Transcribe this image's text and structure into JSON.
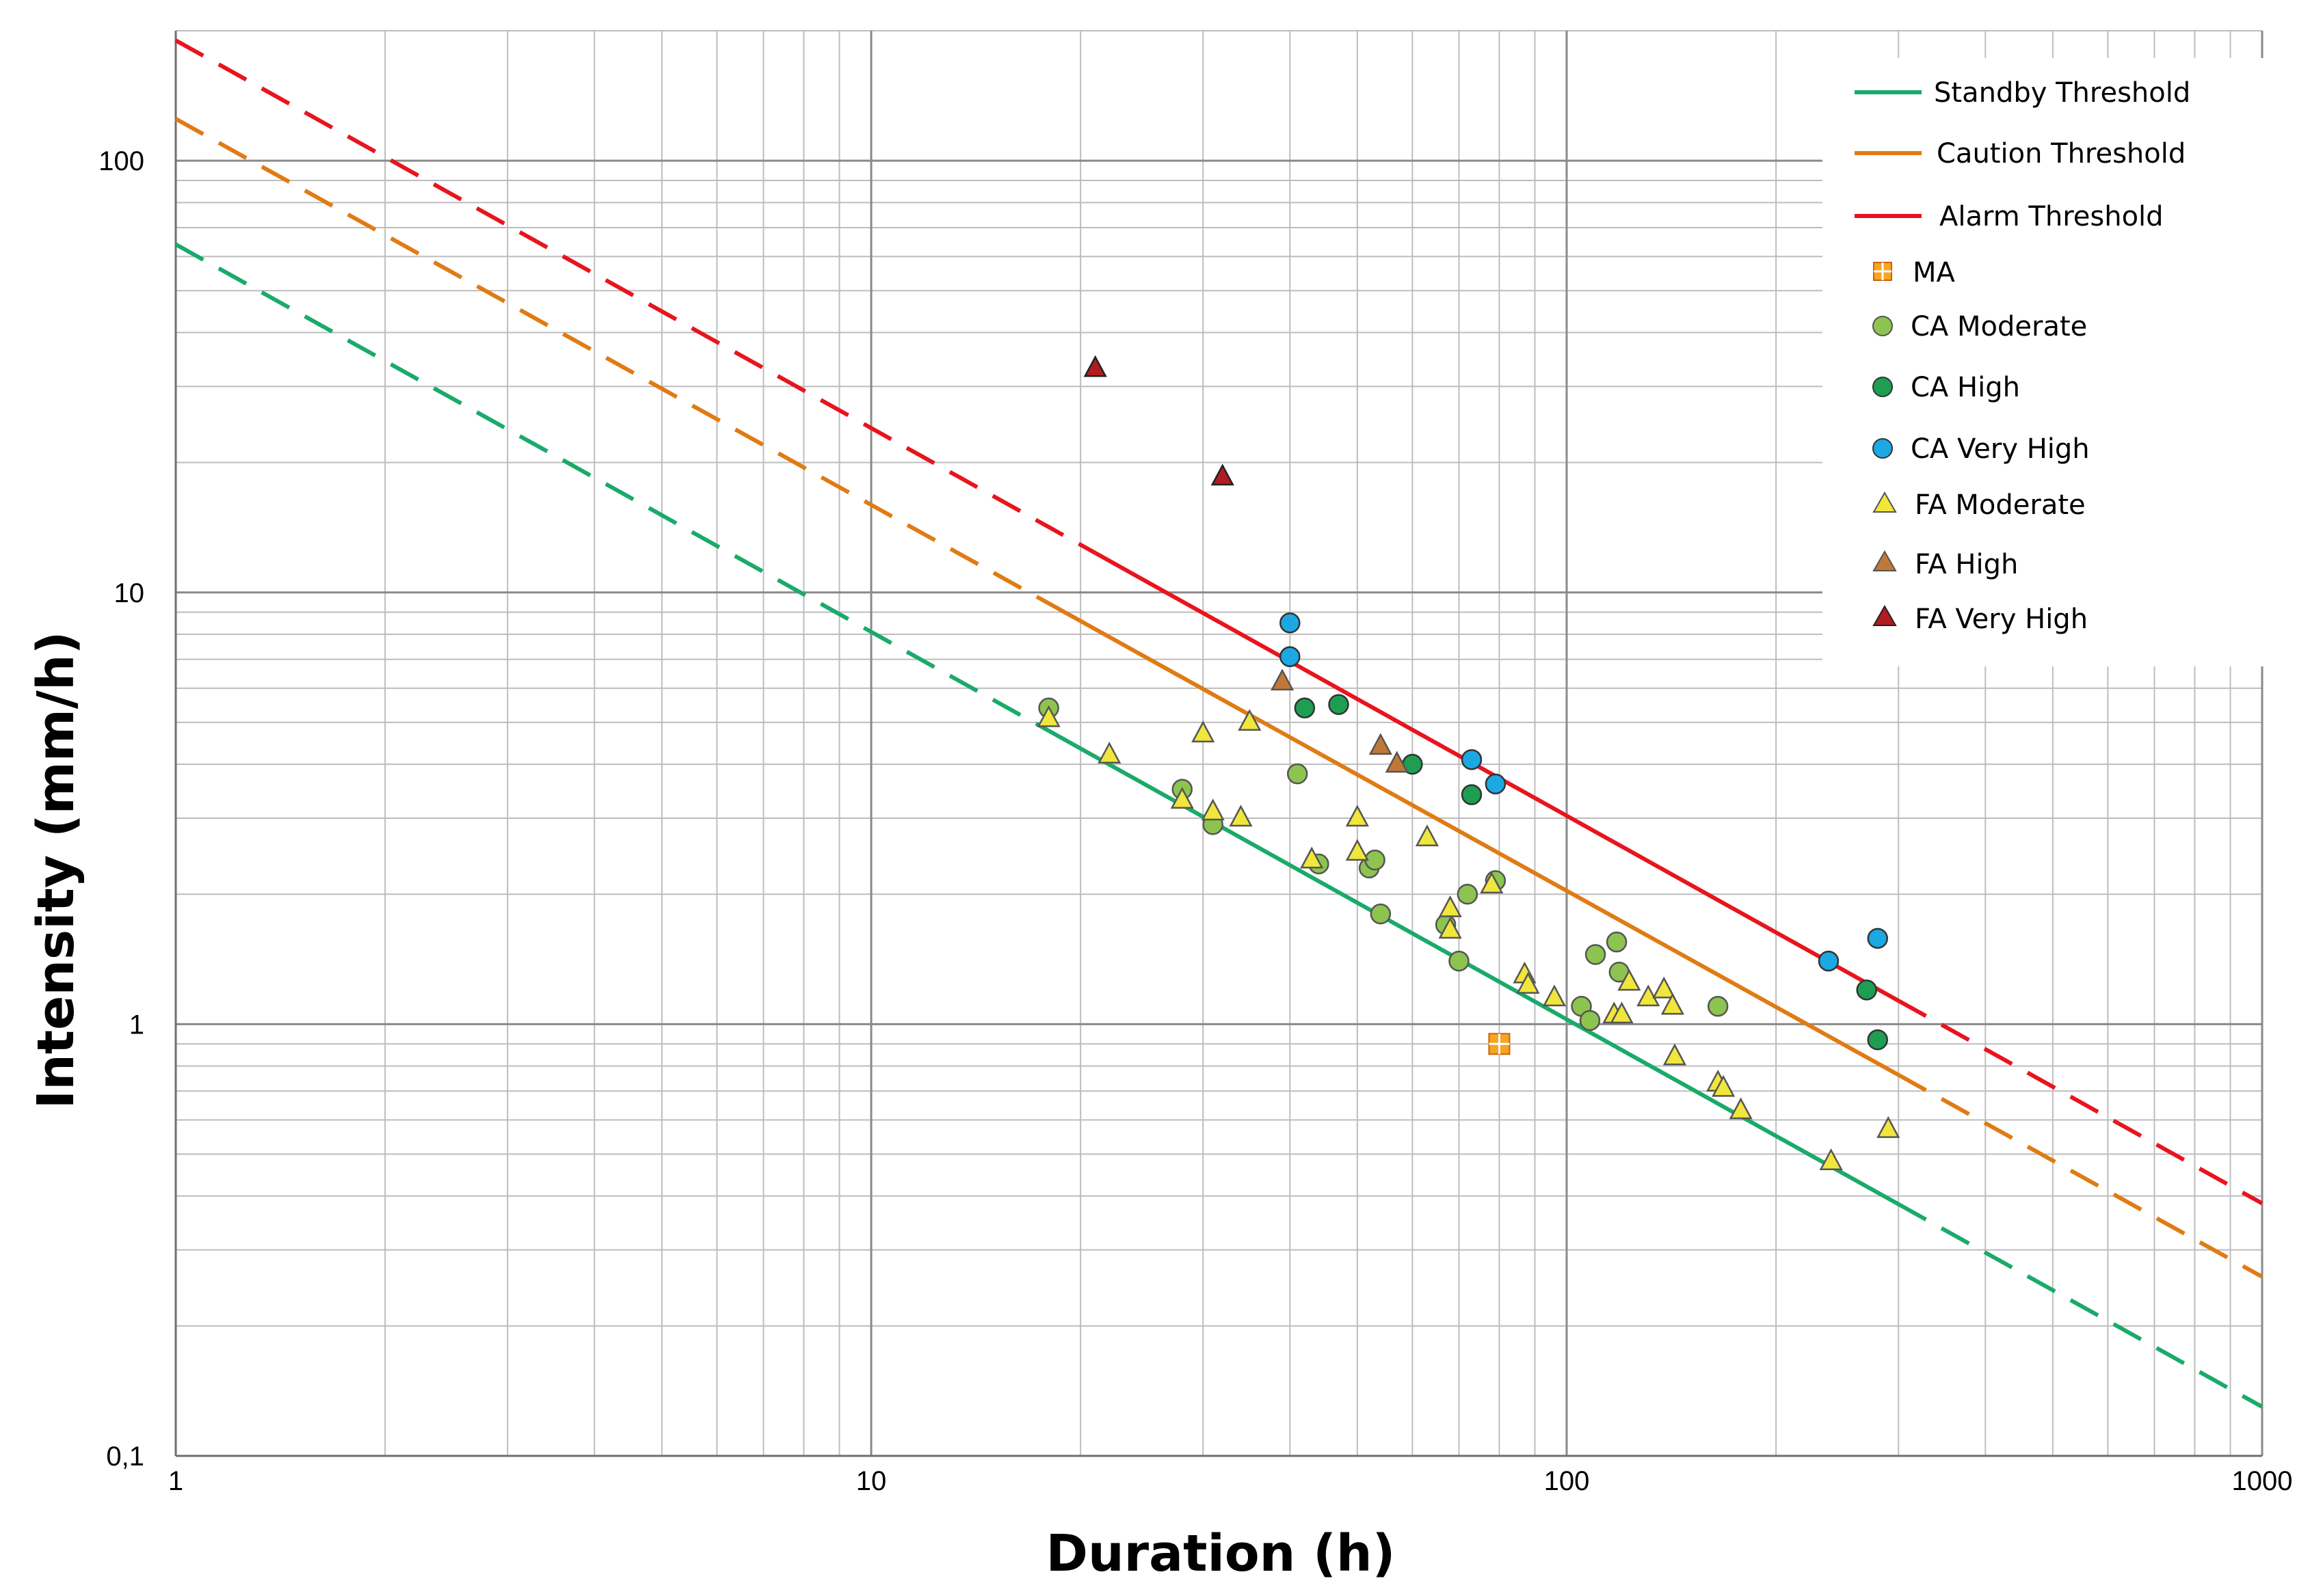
{
  "chart_data": {
    "type": "scatter",
    "xscale": "log",
    "yscale": "log",
    "xlim": [
      1,
      1000
    ],
    "ylim": [
      0.1,
      200
    ],
    "xlabel": "Duration (h)",
    "ylabel": "Intensity (mm/h)",
    "grid": true,
    "legend_position": "top-right",
    "x_ticks": [
      {
        "value": 1,
        "label": "1"
      },
      {
        "value": 10,
        "label": "10"
      },
      {
        "value": 100,
        "label": "100"
      },
      {
        "value": 1000,
        "label": "1000"
      }
    ],
    "y_ticks": [
      {
        "value": 0.1,
        "label": "0,1"
      },
      {
        "value": 1,
        "label": "1"
      },
      {
        "value": 10,
        "label": "10"
      },
      {
        "value": 100,
        "label": "100"
      }
    ],
    "thresholds": [
      {
        "name": "Standby Threshold",
        "color": "#1aaa6a",
        "coef": 64.0,
        "exp": -0.8975,
        "solid_range": [
          18,
          300
        ],
        "x_range": [
          1,
          1000
        ]
      },
      {
        "name": "Caution Threshold",
        "color": "#e07b14",
        "coef": 125.0,
        "exp": -0.894,
        "solid_range": [
          18,
          300
        ],
        "x_range": [
          1,
          1000
        ]
      },
      {
        "name": "Alarm Threshold",
        "color": "#e8141e",
        "coef": 190.0,
        "exp": -0.898,
        "solid_range": [
          21,
          300
        ],
        "x_range": [
          1,
          1000
        ]
      }
    ],
    "series": [
      {
        "name": "MA",
        "marker": "square-plus",
        "color": "#f5a623",
        "edge": "#d06000",
        "points": [
          [
            80,
            0.9
          ]
        ]
      },
      {
        "name": "CA Moderate",
        "marker": "circle",
        "color": "#8dc44f",
        "edge": "#555555",
        "points": [
          [
            18,
            5.4
          ],
          [
            28,
            3.5
          ],
          [
            31,
            2.9
          ],
          [
            41,
            3.8
          ],
          [
            44,
            2.35
          ],
          [
            52,
            2.3
          ],
          [
            53,
            2.4
          ],
          [
            54,
            1.8
          ],
          [
            67,
            1.7
          ],
          [
            70,
            1.4
          ],
          [
            72,
            2.0
          ],
          [
            79,
            2.15
          ],
          [
            105,
            1.1
          ],
          [
            108,
            1.02
          ],
          [
            110,
            1.45
          ],
          [
            118,
            1.55
          ],
          [
            119,
            1.32
          ],
          [
            165,
            1.1
          ]
        ]
      },
      {
        "name": "CA High",
        "marker": "circle",
        "color": "#1e9e52",
        "edge": "#333333",
        "points": [
          [
            42,
            5.4
          ],
          [
            47,
            5.5
          ],
          [
            60,
            4.0
          ],
          [
            73,
            3.4
          ],
          [
            270,
            1.2
          ],
          [
            280,
            0.92
          ]
        ]
      },
      {
        "name": "CA Very High",
        "marker": "circle",
        "color": "#1ca8e3",
        "edge": "#333333",
        "points": [
          [
            40,
            8.5
          ],
          [
            40,
            7.1
          ],
          [
            73,
            4.1
          ],
          [
            79,
            3.6
          ],
          [
            238,
            1.4
          ],
          [
            280,
            1.58
          ]
        ]
      },
      {
        "name": "FA Moderate",
        "marker": "triangle",
        "color": "#f0e63c",
        "edge": "#555555",
        "points": [
          [
            18,
            5.1
          ],
          [
            22,
            4.2
          ],
          [
            28,
            3.3
          ],
          [
            30,
            4.7
          ],
          [
            31,
            3.1
          ],
          [
            34,
            3.0
          ],
          [
            35,
            5.0
          ],
          [
            43,
            2.4
          ],
          [
            50,
            3.0
          ],
          [
            50,
            2.5
          ],
          [
            63,
            2.7
          ],
          [
            68,
            1.85
          ],
          [
            68,
            1.65
          ],
          [
            78,
            2.1
          ],
          [
            87,
            1.3
          ],
          [
            88,
            1.23
          ],
          [
            96,
            1.15
          ],
          [
            117,
            1.05
          ],
          [
            120,
            1.05
          ],
          [
            123,
            1.25
          ],
          [
            131,
            1.15
          ],
          [
            138,
            1.2
          ],
          [
            142,
            1.1
          ],
          [
            143,
            0.84
          ],
          [
            165,
            0.73
          ],
          [
            168,
            0.71
          ],
          [
            178,
            0.63
          ],
          [
            240,
            0.48
          ],
          [
            290,
            0.57
          ]
        ]
      },
      {
        "name": "FA High",
        "marker": "triangle",
        "color": "#c07838",
        "edge": "#555555",
        "points": [
          [
            39,
            6.2
          ],
          [
            54,
            4.4
          ],
          [
            57,
            4.0
          ]
        ]
      },
      {
        "name": "FA Very High",
        "marker": "triangle",
        "color": "#b01c22",
        "edge": "#222222",
        "points": [
          [
            21,
            33.0
          ],
          [
            32,
            18.5
          ]
        ]
      }
    ]
  }
}
